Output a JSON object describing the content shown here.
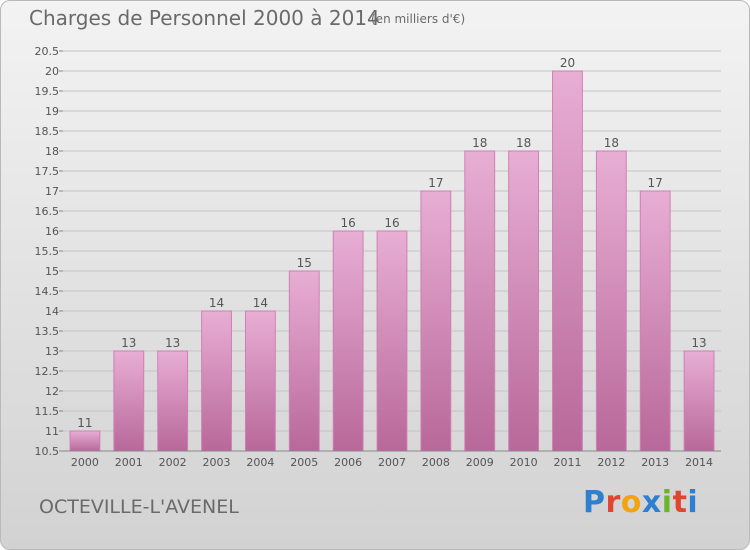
{
  "header": {
    "title": "Charges de Personnel 2000 à 2014",
    "subtitle": "(en milliers d'€)"
  },
  "footer": {
    "commune": "OCTEVILLE-L'AVENEL",
    "brand_letters": [
      "P",
      "r",
      "o",
      "x",
      "i",
      "t",
      "i"
    ],
    "brand_colors": [
      "#2e7fd0",
      "#e0462f",
      "#f2a30f",
      "#2e7fd0",
      "#6bb52d",
      "#e0462f",
      "#2e7fd0"
    ]
  },
  "colors": {
    "bar_top": "#e8aed4",
    "bar_bottom": "#b8689a",
    "bar_edge": "#d07fb3",
    "grid": "#c4c4c4",
    "axis": "#888888",
    "label": "#555555"
  },
  "chart_data": {
    "type": "bar",
    "categories": [
      "2000",
      "2001",
      "2002",
      "2003",
      "2004",
      "2005",
      "2006",
      "2007",
      "2008",
      "2009",
      "2010",
      "2011",
      "2012",
      "2013",
      "2014"
    ],
    "values": [
      11,
      13,
      13,
      14,
      14,
      15,
      16,
      16,
      17,
      18,
      18,
      20,
      18,
      17,
      13
    ],
    "data_labels": [
      "11",
      "13",
      "13",
      "14",
      "14",
      "15",
      "16",
      "16",
      "17",
      "18",
      "18",
      "20",
      "18",
      "17",
      "13"
    ],
    "ylim": [
      10.5,
      20.5
    ],
    "yticks": [
      10.5,
      11,
      11.5,
      12,
      12.5,
      13,
      13.5,
      14,
      14.5,
      15,
      15.5,
      16,
      16.5,
      17,
      17.5,
      18,
      18.5,
      19,
      19.5,
      20,
      20.5
    ],
    "ytick_labels": [
      "10.5",
      "11",
      "11.5",
      "12",
      "12.5",
      "13",
      "13.5",
      "14",
      "14.5",
      "15",
      "15.5",
      "16",
      "16.5",
      "17",
      "17.5",
      "18",
      "18.5",
      "19",
      "19.5",
      "20",
      "20.5"
    ],
    "grid": true,
    "legend": "none"
  }
}
